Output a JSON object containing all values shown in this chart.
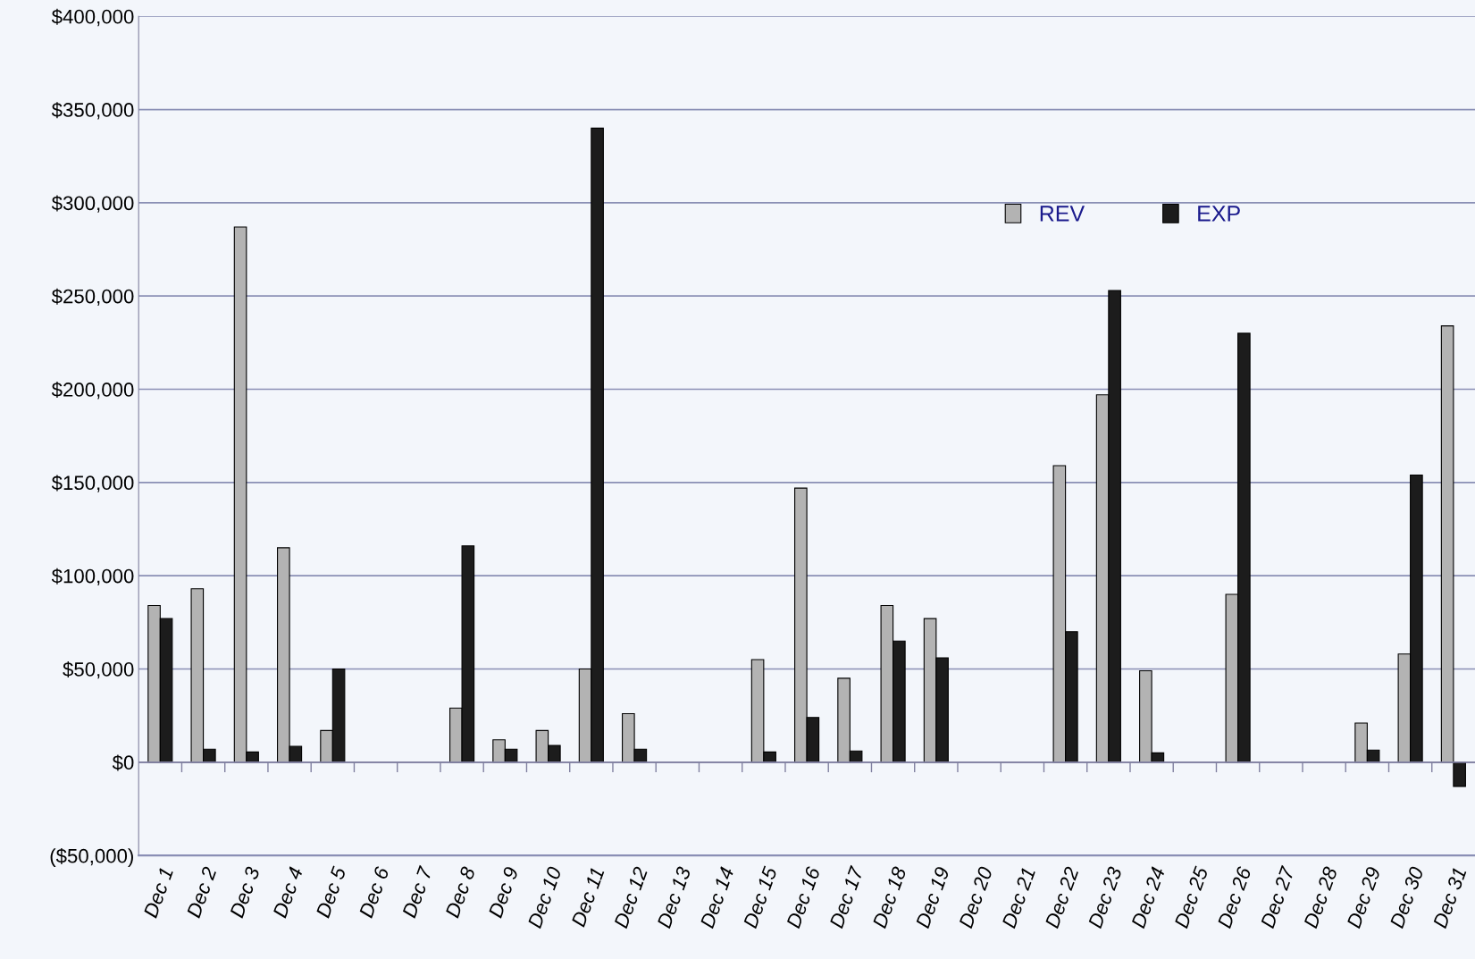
{
  "chart_data": {
    "type": "bar",
    "categories": [
      "Dec 1",
      "Dec 2",
      "Dec 3",
      "Dec 4",
      "Dec 5",
      "Dec 6",
      "Dec 7",
      "Dec 8",
      "Dec 9",
      "Dec 10",
      "Dec 11",
      "Dec 12",
      "Dec 13",
      "Dec 14",
      "Dec 15",
      "Dec 16",
      "Dec 17",
      "Dec 18",
      "Dec 19",
      "Dec 20",
      "Dec 21",
      "Dec 22",
      "Dec 23",
      "Dec 24",
      "Dec 25",
      "Dec 26",
      "Dec 27",
      "Dec 28",
      "Dec 29",
      "Dec 30",
      "Dec 31"
    ],
    "series": [
      {
        "name": "REV",
        "color": "#b3b3b3",
        "values": [
          84000,
          93000,
          287000,
          115000,
          17000,
          null,
          null,
          29000,
          12000,
          17000,
          50000,
          26000,
          null,
          null,
          55000,
          147000,
          45000,
          84000,
          77000,
          null,
          null,
          159000,
          197000,
          49000,
          null,
          90000,
          null,
          null,
          21000,
          58000,
          234000
        ]
      },
      {
        "name": "EXP",
        "color": "#1c1c1c",
        "values": [
          77000,
          7000,
          5500,
          8500,
          50000,
          null,
          null,
          116000,
          7000,
          9000,
          340000,
          7000,
          null,
          null,
          5500,
          24000,
          6000,
          65000,
          56000,
          null,
          null,
          70000,
          253000,
          5000,
          null,
          230000,
          null,
          null,
          6500,
          154000,
          -13000
        ]
      }
    ],
    "ylim": [
      -50000,
      400000
    ],
    "yticks": [
      {
        "value": -50000,
        "label": "($50,000)"
      },
      {
        "value": 0,
        "label": "$0"
      },
      {
        "value": 50000,
        "label": "$50,000"
      },
      {
        "value": 100000,
        "label": "$100,000"
      },
      {
        "value": 150000,
        "label": "$150,000"
      },
      {
        "value": 200000,
        "label": "$200,000"
      },
      {
        "value": 250000,
        "label": "$250,000"
      },
      {
        "value": 300000,
        "label": "$300,000"
      },
      {
        "value": 350000,
        "label": "$350,000"
      },
      {
        "value": 400000,
        "label": "$400,000"
      }
    ],
    "grid": "y",
    "legend": "top right"
  }
}
